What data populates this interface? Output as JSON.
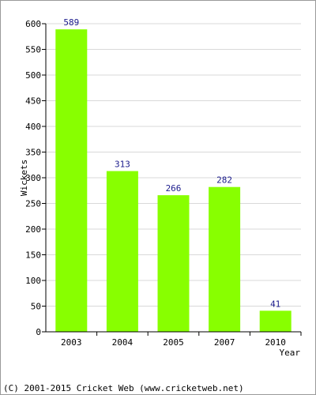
{
  "chart_data": {
    "type": "bar",
    "categories": [
      "2003",
      "2004",
      "2005",
      "2007",
      "2010"
    ],
    "values": [
      589,
      313,
      266,
      282,
      41
    ],
    "data_labels": [
      "589",
      "313",
      "266",
      "282",
      "41"
    ],
    "xlabel": "Year",
    "ylabel": "Wickets",
    "ylim": [
      0,
      600
    ],
    "yticks": [
      0,
      50,
      100,
      150,
      200,
      250,
      300,
      350,
      400,
      450,
      500,
      550,
      600
    ],
    "grid": true,
    "bar_color": "#88ff00",
    "label_color": "#1a1a8c",
    "grid_color": "#d9d9d9"
  },
  "footer": {
    "text": "(C) 2001-2015 Cricket Web (www.cricketweb.net)"
  }
}
